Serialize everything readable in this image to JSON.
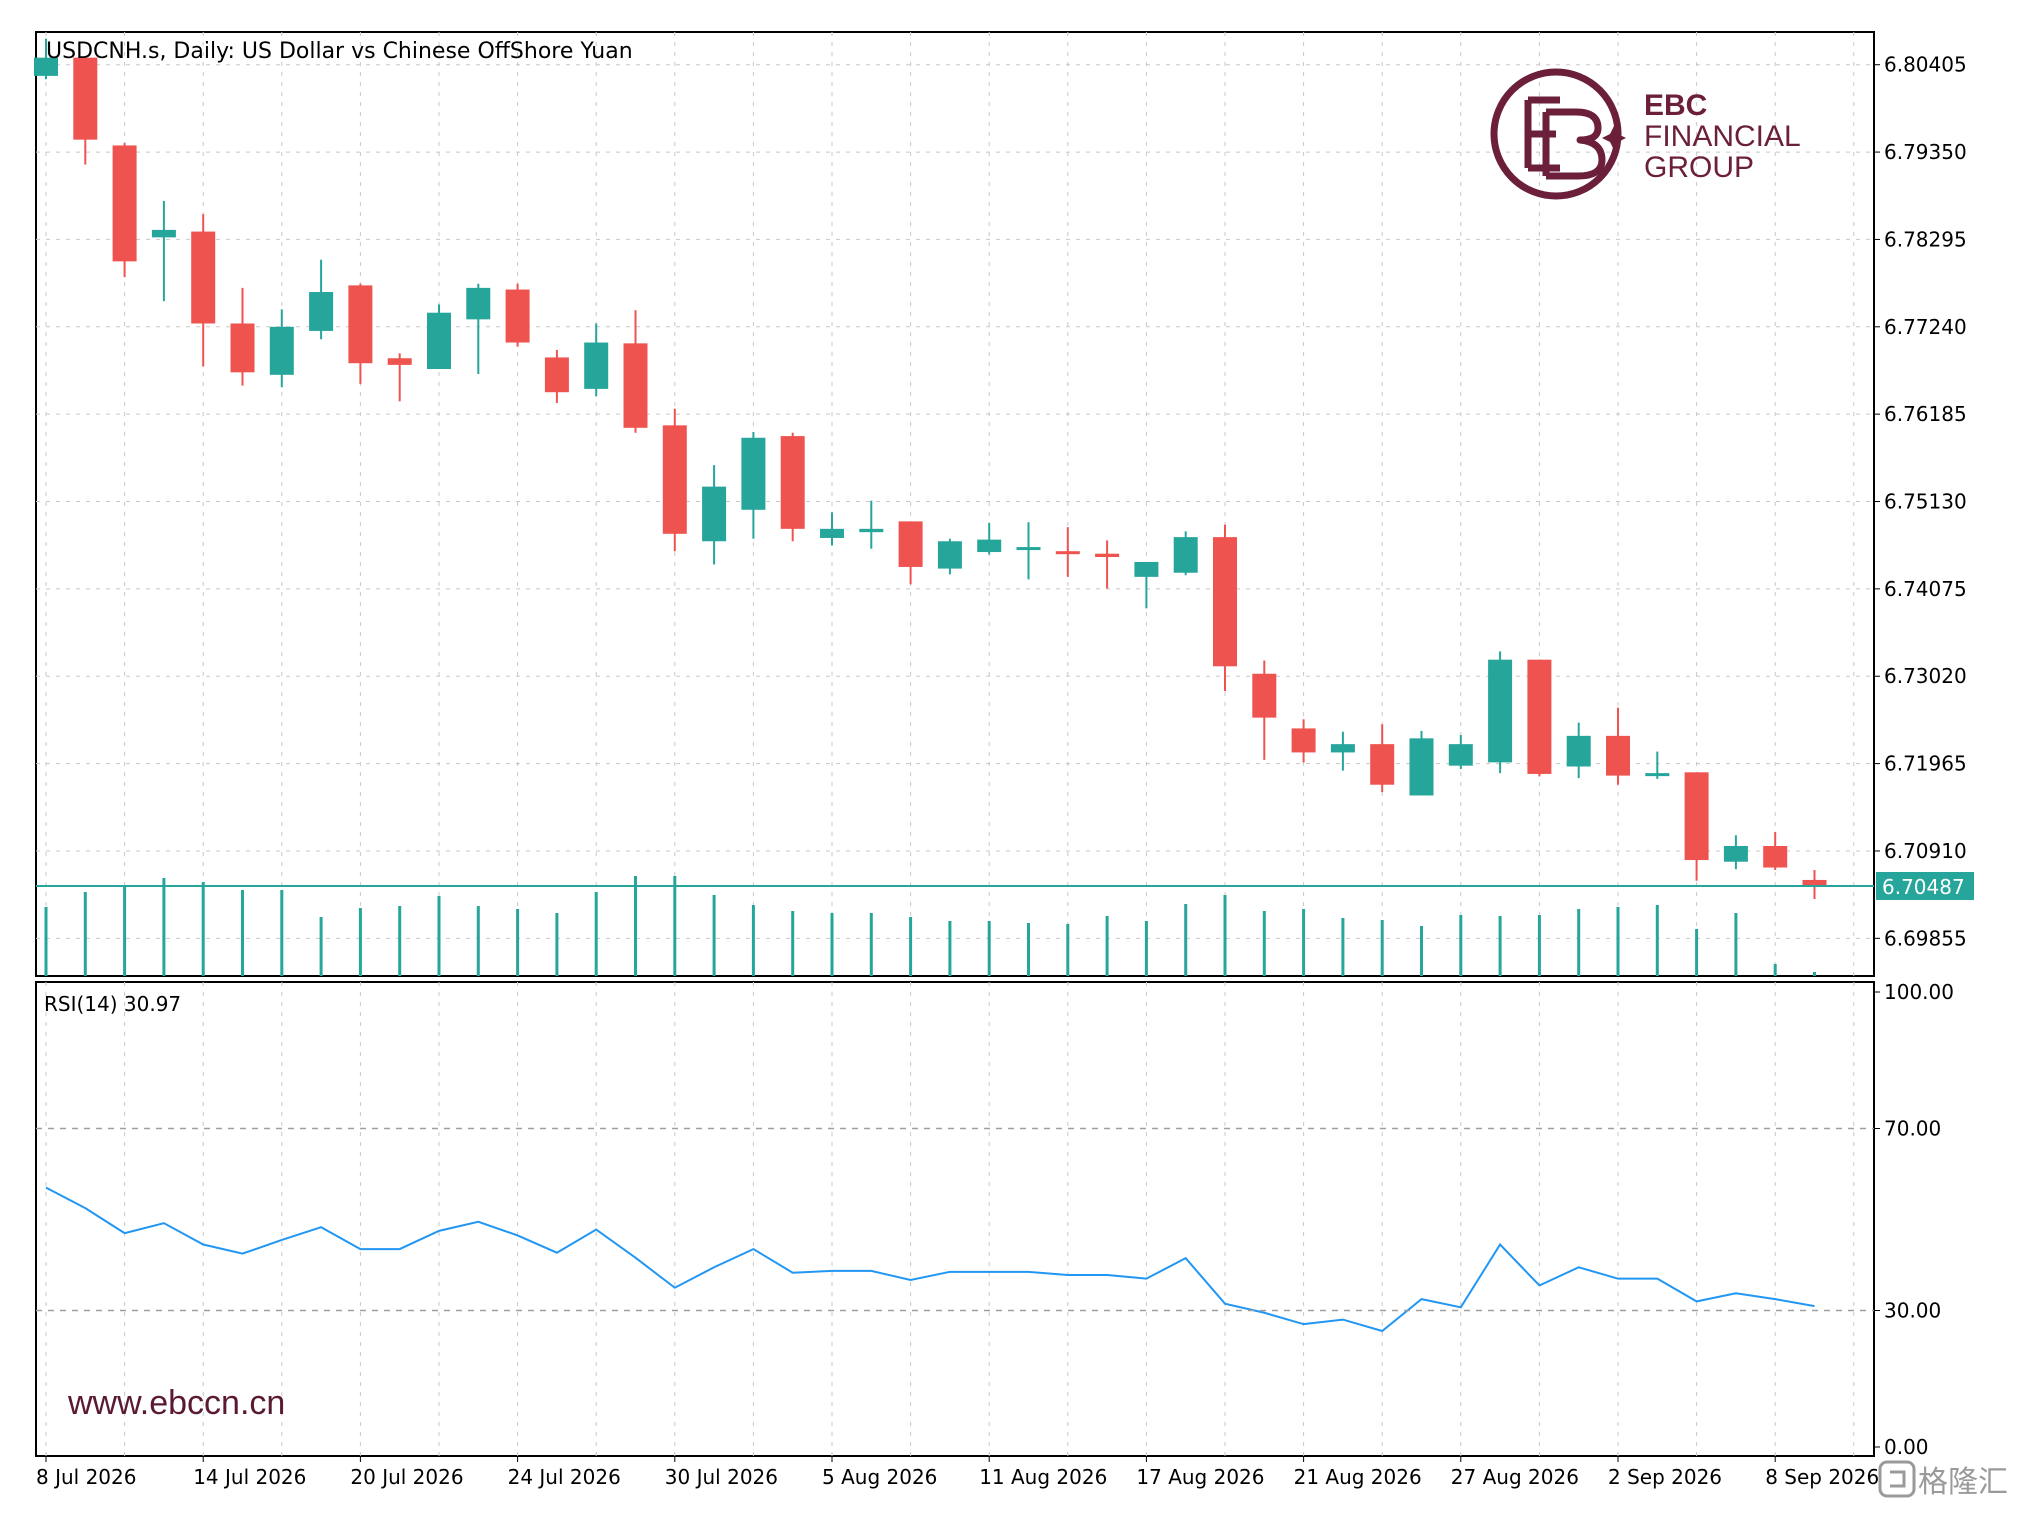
{
  "chart_title": "USDCNH.s, Daily:  US Dollar vs Chinese OffShore Yuan",
  "logo": {
    "line1": "EBC",
    "line2": "FINANCIAL",
    "line3": "GROUP"
  },
  "website": "www.ebccn.cn",
  "watermark": "格隆汇",
  "colors": {
    "bull": "#26a69a",
    "bear": "#ef5350",
    "rsi_line": "#2196f3",
    "grid": "#c8c8c8",
    "logo": "#6b1f3a",
    "price_line": "#26a69a"
  },
  "price_axis": {
    "ticks": [
      "6.80405",
      "6.79350",
      "6.78295",
      "6.77240",
      "6.76185",
      "6.75130",
      "6.74075",
      "6.73020",
      "6.71965",
      "6.70910",
      "6.69855"
    ],
    "current_price_label": "6.70487"
  },
  "rsi_panel": {
    "label": "RSI(14) 30.97",
    "ticks": [
      "100.00",
      "70.00",
      "30.00",
      "0.00"
    ]
  },
  "x_axis": {
    "labels": [
      "8 Jul 2026",
      "14 Jul 2026",
      "20 Jul 2026",
      "24 Jul 2026",
      "30 Jul 2026",
      "5 Aug 2026",
      "11 Aug 2026",
      "17 Aug 2026",
      "21 Aug 2026",
      "27 Aug 2026",
      "2 Sep 2026",
      "8 Sep 2026"
    ]
  },
  "chart_data": [
    {
      "type": "candlestick",
      "title": "USDCNH.s, Daily:  US Dollar vs Chinese OffShore Yuan",
      "ylim": [
        6.694,
        6.808
      ],
      "current_price": 6.70487,
      "grid": true,
      "candles": [
        {
          "o": 6.8027,
          "h": 6.8072,
          "l": 6.8023,
          "c": 6.8049
        },
        {
          "o": 6.8049,
          "h": 6.8049,
          "l": 6.792,
          "c": 6.795
        },
        {
          "o": 6.7943,
          "h": 6.7946,
          "l": 6.7784,
          "c": 6.7803
        },
        {
          "o": 6.7832,
          "h": 6.7876,
          "l": 6.7755,
          "c": 6.7841
        },
        {
          "o": 6.7839,
          "h": 6.786,
          "l": 6.7676,
          "c": 6.7728
        },
        {
          "o": 6.7728,
          "h": 6.7771,
          "l": 6.7653,
          "c": 6.7669
        },
        {
          "o": 6.7666,
          "h": 6.7745,
          "l": 6.7651,
          "c": 6.7724
        },
        {
          "o": 6.7719,
          "h": 6.7805,
          "l": 6.7709,
          "c": 6.7766
        },
        {
          "o": 6.7774,
          "h": 6.7776,
          "l": 6.7655,
          "c": 6.768
        },
        {
          "o": 6.7686,
          "h": 6.7692,
          "l": 6.7634,
          "c": 6.7678
        },
        {
          "o": 6.7673,
          "h": 6.7751,
          "l": 6.7673,
          "c": 6.7741
        },
        {
          "o": 6.7733,
          "h": 6.7776,
          "l": 6.7667,
          "c": 6.7771
        },
        {
          "o": 6.7769,
          "h": 6.7776,
          "l": 6.77,
          "c": 6.7705
        },
        {
          "o": 6.7687,
          "h": 6.7696,
          "l": 6.7632,
          "c": 6.7645
        },
        {
          "o": 6.7649,
          "h": 6.7728,
          "l": 6.764,
          "c": 6.7705
        },
        {
          "o": 6.7704,
          "h": 6.7744,
          "l": 6.7596,
          "c": 6.7602
        },
        {
          "o": 6.7605,
          "h": 6.7625,
          "l": 6.7453,
          "c": 6.7474
        },
        {
          "o": 6.7465,
          "h": 6.7557,
          "l": 6.7437,
          "c": 6.7531
        },
        {
          "o": 6.7503,
          "h": 6.7597,
          "l": 6.7468,
          "c": 6.759
        },
        {
          "o": 6.7592,
          "h": 6.7596,
          "l": 6.7465,
          "c": 6.748
        },
        {
          "o": 6.7469,
          "h": 6.75,
          "l": 6.746,
          "c": 6.748
        },
        {
          "o": 6.7476,
          "h": 6.7514,
          "l": 6.7456,
          "c": 6.748
        },
        {
          "o": 6.7489,
          "h": 6.7489,
          "l": 6.7413,
          "c": 6.7434
        },
        {
          "o": 6.7432,
          "h": 6.7468,
          "l": 6.7425,
          "c": 6.7465
        },
        {
          "o": 6.7452,
          "h": 6.7487,
          "l": 6.7449,
          "c": 6.7467
        },
        {
          "o": 6.7458,
          "h": 6.7488,
          "l": 6.7419,
          "c": 6.7458
        },
        {
          "o": 6.7453,
          "h": 6.7482,
          "l": 6.7422,
          "c": 6.745
        },
        {
          "o": 6.745,
          "h": 6.7466,
          "l": 6.7408,
          "c": 6.7446
        },
        {
          "o": 6.7422,
          "h": 6.744,
          "l": 6.7384,
          "c": 6.744
        },
        {
          "o": 6.7427,
          "h": 6.7477,
          "l": 6.7424,
          "c": 6.747
        },
        {
          "o": 6.747,
          "h": 6.7485,
          "l": 6.7284,
          "c": 6.7314
        },
        {
          "o": 6.7305,
          "h": 6.7321,
          "l": 6.7201,
          "c": 6.7252
        },
        {
          "o": 6.7239,
          "h": 6.725,
          "l": 6.7198,
          "c": 6.721
        },
        {
          "o": 6.721,
          "h": 6.7235,
          "l": 6.7188,
          "c": 6.722
        },
        {
          "o": 6.722,
          "h": 6.7244,
          "l": 6.7162,
          "c": 6.7171
        },
        {
          "o": 6.7158,
          "h": 6.7236,
          "l": 6.7158,
          "c": 6.7227
        },
        {
          "o": 6.7194,
          "h": 6.7231,
          "l": 6.719,
          "c": 6.722
        },
        {
          "o": 6.7198,
          "h": 6.7332,
          "l": 6.7185,
          "c": 6.7322
        },
        {
          "o": 6.7322,
          "h": 6.7322,
          "l": 6.7181,
          "c": 6.7184
        },
        {
          "o": 6.7193,
          "h": 6.7246,
          "l": 6.7179,
          "c": 6.723
        },
        {
          "o": 6.723,
          "h": 6.7264,
          "l": 6.7171,
          "c": 6.7182
        },
        {
          "o": 6.7182,
          "h": 6.7211,
          "l": 6.7178,
          "c": 6.7185
        },
        {
          "o": 6.7186,
          "h": 6.7186,
          "l": 6.7055,
          "c": 6.708
        },
        {
          "o": 6.7078,
          "h": 6.711,
          "l": 6.7069,
          "c": 6.7097
        },
        {
          "o": 6.7097,
          "h": 6.7114,
          "l": 6.7068,
          "c": 6.7071
        },
        {
          "o": 6.7056,
          "h": 6.7068,
          "l": 6.7033,
          "c": 6.7049
        }
      ],
      "volume": [
        0.69,
        0.84,
        0.9,
        0.98,
        0.94,
        0.86,
        0.86,
        0.59,
        0.68,
        0.7,
        0.8,
        0.7,
        0.67,
        0.63,
        0.84,
        1.0,
        1.0,
        0.81,
        0.71,
        0.65,
        0.63,
        0.63,
        0.59,
        0.55,
        0.55,
        0.53,
        0.52,
        0.6,
        0.55,
        0.72,
        0.81,
        0.65,
        0.67,
        0.58,
        0.56,
        0.5,
        0.61,
        0.6,
        0.61,
        0.67,
        0.69,
        0.71,
        0.47,
        0.63,
        0.12,
        0.0
      ]
    },
    {
      "type": "line",
      "title": "RSI(14) 30.97",
      "ylim": [
        0,
        100
      ],
      "levels": [
        70,
        30
      ],
      "grid": true,
      "values": [
        57.0,
        52.5,
        47.0,
        49.2,
        44.5,
        42.5,
        45.5,
        48.3,
        43.5,
        43.5,
        47.5,
        49.5,
        46.5,
        42.7,
        47.8,
        41.6,
        35.0,
        39.5,
        43.5,
        38.3,
        38.7,
        38.7,
        36.7,
        38.5,
        38.5,
        38.5,
        37.8,
        37.8,
        37.0,
        41.5,
        31.5,
        29.5,
        27.0,
        28.0,
        25.5,
        32.5,
        30.7,
        44.5,
        35.5,
        39.5,
        37.0,
        37.0,
        32.0,
        33.8,
        32.5,
        30.97
      ]
    }
  ]
}
